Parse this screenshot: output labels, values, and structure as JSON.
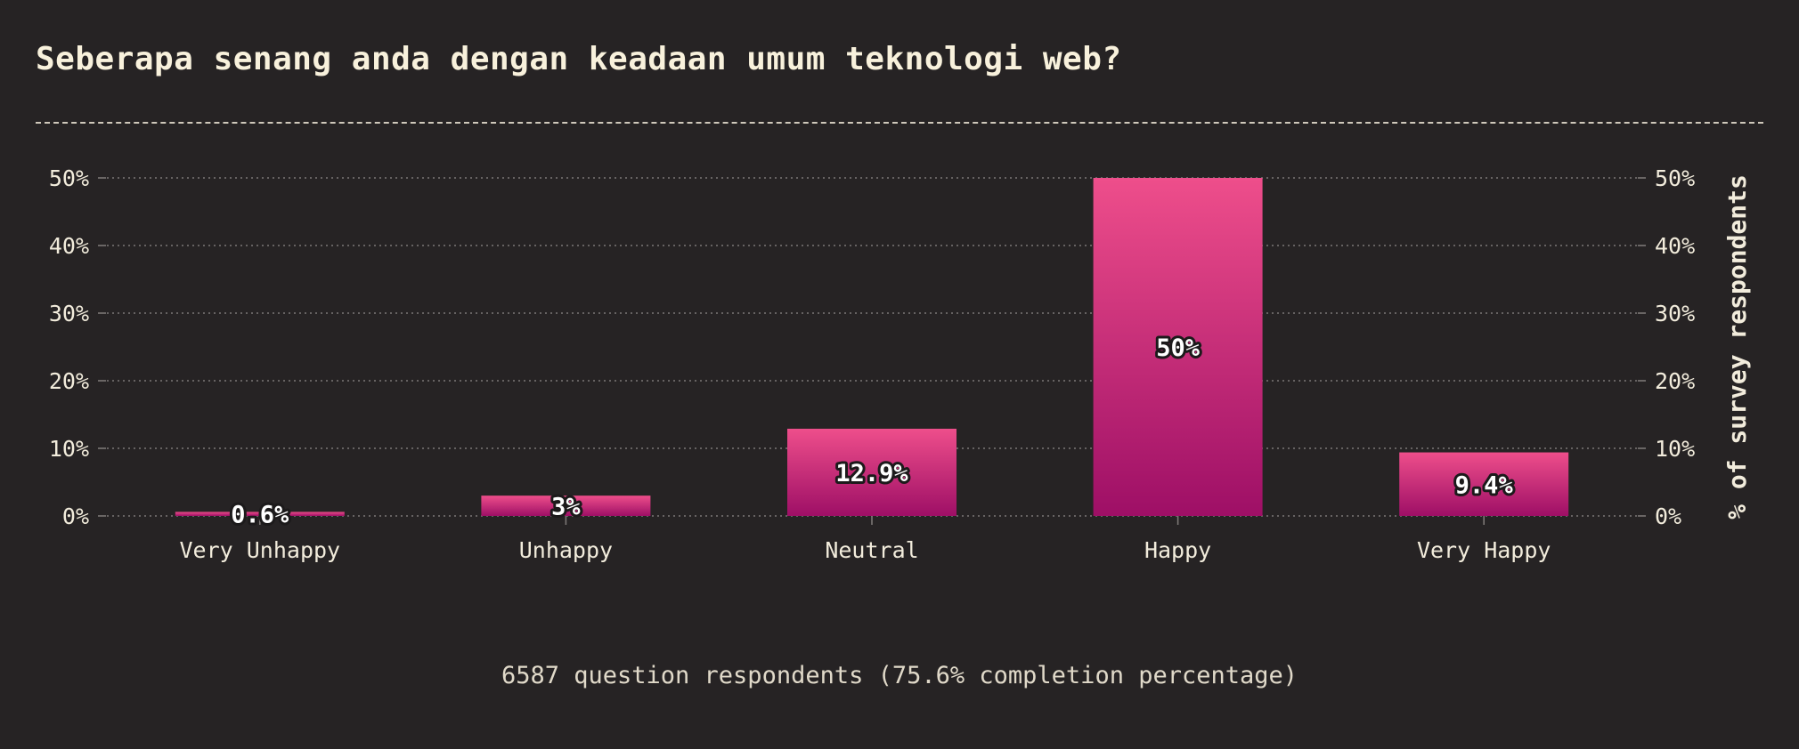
{
  "title": "Seberapa senang anda dengan keadaan umum teknologi web?",
  "footer": "6587 question respondents (75.6% completion percentage)",
  "colors": {
    "background": "#262324",
    "bar_top": "#ee4e8b",
    "bar_bottom": "#9e0f66",
    "text": "#f2ecdc",
    "grid": "#7c7776"
  },
  "chart_data": {
    "type": "bar",
    "categories": [
      "Very Unhappy",
      "Unhappy",
      "Neutral",
      "Happy",
      "Very Happy"
    ],
    "values": [
      0.6,
      3,
      12.9,
      50,
      9.4
    ],
    "value_labels": [
      "0.6%",
      "3%",
      "12.9%",
      "50%",
      "9.4%"
    ],
    "ylim": [
      0,
      50
    ],
    "yticks": [
      "0%",
      "10%",
      "20%",
      "30%",
      "40%",
      "50%"
    ],
    "ylabel": "% of survey respondents",
    "grid": true,
    "legend": false
  }
}
